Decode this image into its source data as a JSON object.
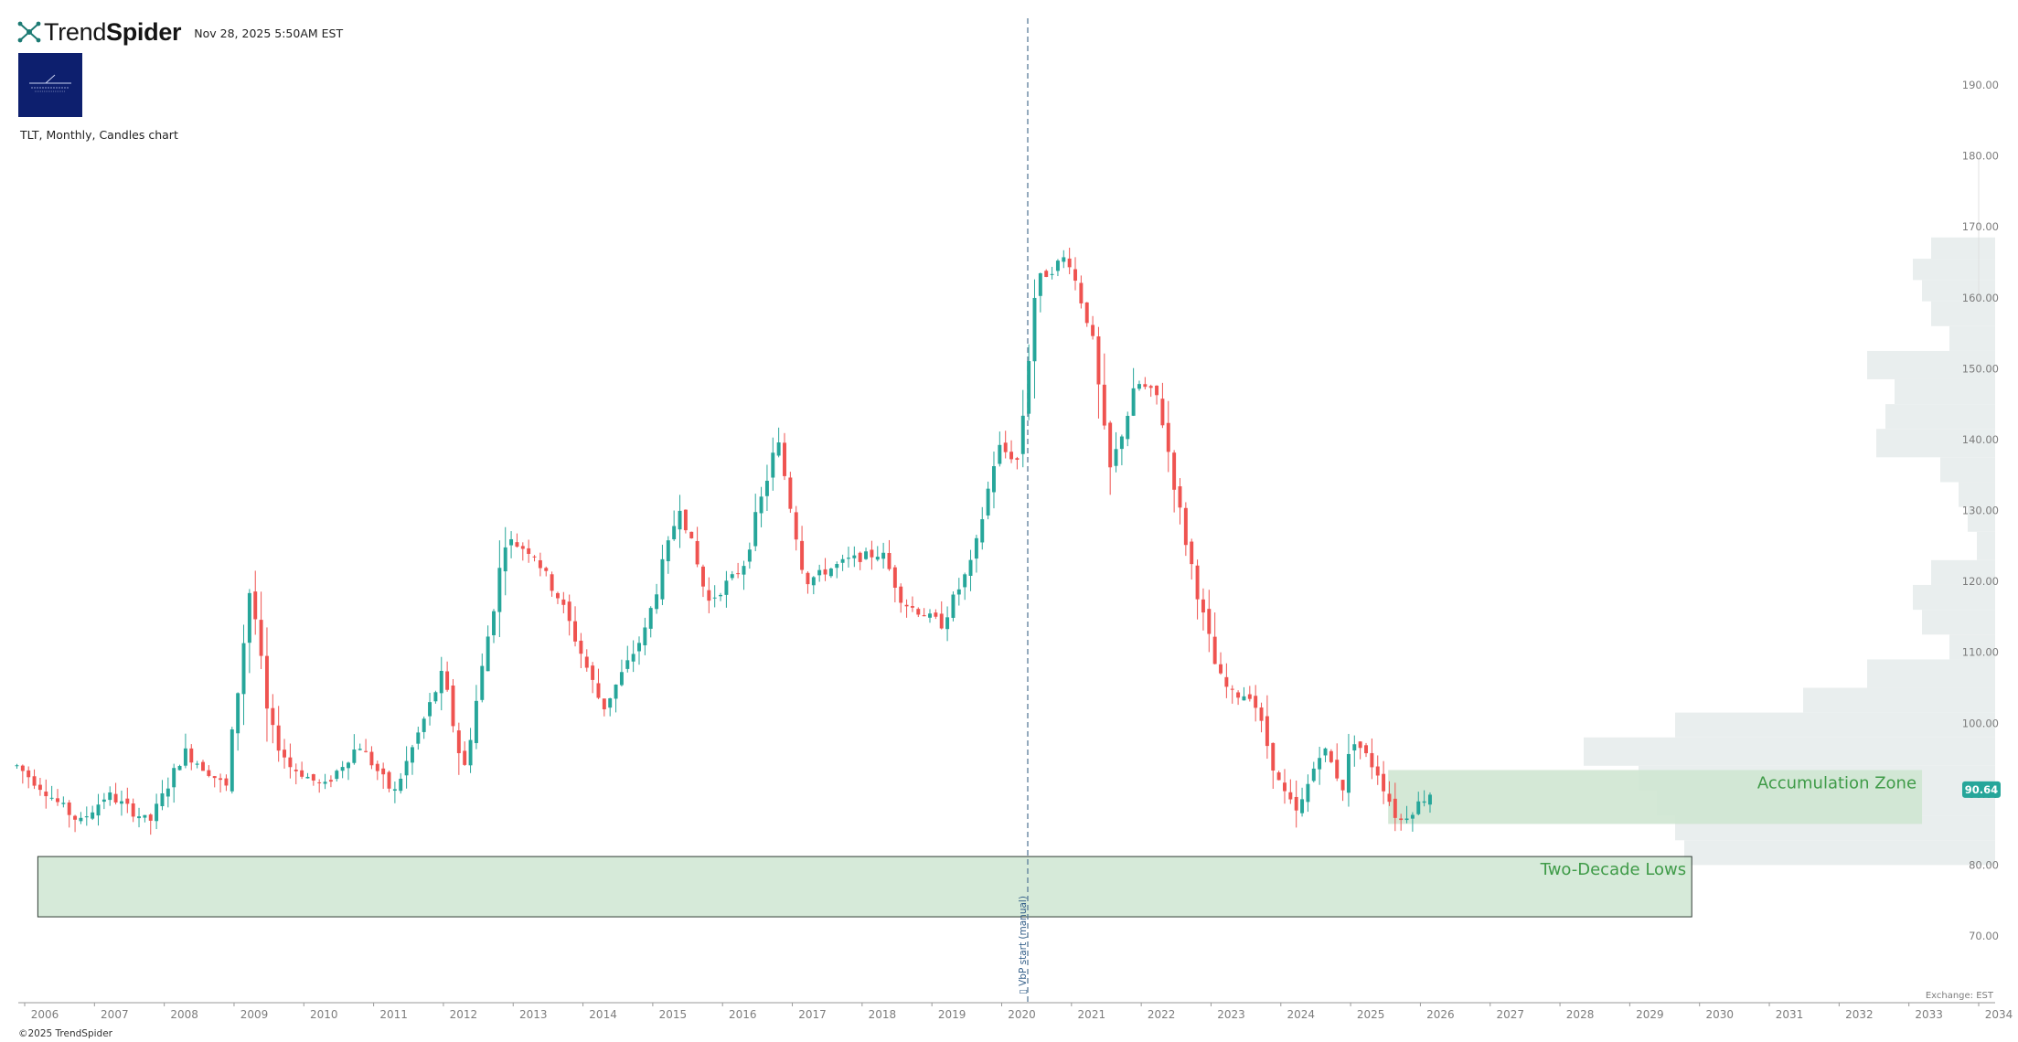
{
  "header": {
    "brand_light": "Trend",
    "brand_bold": "Spider",
    "date": "Nov 28, 2025 5:50AM EST",
    "caption": "TLT, Monthly, Candles chart",
    "copyright": "©2025 TrendSpider",
    "exchange": "Exchange: EST"
  },
  "colors": {
    "up": "#26a69a",
    "down": "#ef5350",
    "zone_fill": "#cfe6d2",
    "zone_label": "#3f9b48",
    "volume_profile": "#e9eeee",
    "marker_line": "#5a7d9a",
    "price_badge": "#26a69a"
  },
  "chart_data": {
    "type": "candlestick",
    "symbol": "TLT",
    "interval": "Monthly",
    "ylim": [
      63,
      202
    ],
    "y_ticks": [
      "70.00",
      "80.00",
      "90.00",
      "100.00",
      "110.00",
      "120.00",
      "130.00",
      "140.00",
      "150.00",
      "160.00",
      "170.00",
      "180.00",
      "190.00"
    ],
    "x_ticks": [
      "2006",
      "2007",
      "2008",
      "2009",
      "2010",
      "2011",
      "2012",
      "2013",
      "2014",
      "2015",
      "2016",
      "2017",
      "2018",
      "2019",
      "2020",
      "2021",
      "2022",
      "2023",
      "2024",
      "2025",
      "2026",
      "2027",
      "2028",
      "2029",
      "2030",
      "2031",
      "2032",
      "2033",
      "2034"
    ],
    "last_price": "90.64",
    "vertical_marker": {
      "date": "2020.12",
      "label": "VbP start (manual)"
    },
    "zones": [
      {
        "label": "Two-Decade Lows",
        "x_start": 2005.9,
        "x_end": 2029.6,
        "y_low": 72.7,
        "y_high": 81.2
      },
      {
        "label": "Accumulation Zone",
        "x_start": 2025.25,
        "x_end": 2032.9,
        "y_low": 85.8,
        "y_high": 93.4
      }
    ],
    "volume_profile": [
      {
        "low": 165.5,
        "high": 168.5,
        "rel": 0.07
      },
      {
        "low": 162.5,
        "high": 165.5,
        "rel": 0.09
      },
      {
        "low": 159.5,
        "high": 162.5,
        "rel": 0.08
      },
      {
        "low": 156.0,
        "high": 159.5,
        "rel": 0.07
      },
      {
        "low": 152.5,
        "high": 156.0,
        "rel": 0.05
      },
      {
        "low": 148.5,
        "high": 152.5,
        "rel": 0.14
      },
      {
        "low": 145.0,
        "high": 148.5,
        "rel": 0.11
      },
      {
        "low": 141.5,
        "high": 145.0,
        "rel": 0.12
      },
      {
        "low": 137.5,
        "high": 141.5,
        "rel": 0.13
      },
      {
        "low": 134.0,
        "high": 137.5,
        "rel": 0.06
      },
      {
        "low": 130.5,
        "high": 134.0,
        "rel": 0.04
      },
      {
        "low": 127.0,
        "high": 130.5,
        "rel": 0.03
      },
      {
        "low": 123.0,
        "high": 127.0,
        "rel": 0.02
      },
      {
        "low": 119.5,
        "high": 123.0,
        "rel": 0.07
      },
      {
        "low": 116.0,
        "high": 119.5,
        "rel": 0.09
      },
      {
        "low": 112.5,
        "high": 116.0,
        "rel": 0.08
      },
      {
        "low": 109.0,
        "high": 112.5,
        "rel": 0.05
      },
      {
        "low": 105.0,
        "high": 109.0,
        "rel": 0.14
      },
      {
        "low": 101.5,
        "high": 105.0,
        "rel": 0.21
      },
      {
        "low": 98.0,
        "high": 101.5,
        "rel": 0.35
      },
      {
        "low": 94.0,
        "high": 98.0,
        "rel": 0.45
      },
      {
        "low": 90.5,
        "high": 94.0,
        "rel": 0.39
      },
      {
        "low": 87.0,
        "high": 90.5,
        "rel": 0.37
      },
      {
        "low": 83.5,
        "high": 87.0,
        "rel": 0.35
      },
      {
        "low": 80.0,
        "high": 83.5,
        "rel": 0.34
      }
    ],
    "anchors": [
      [
        2005.6,
        94
      ],
      [
        2006.5,
        86
      ],
      [
        2006.9,
        90
      ],
      [
        2007.5,
        86
      ],
      [
        2008.0,
        96
      ],
      [
        2008.6,
        91
      ],
      [
        2008.95,
        120
      ],
      [
        2009.2,
        100
      ],
      [
        2009.5,
        94
      ],
      [
        2010.0,
        91
      ],
      [
        2010.5,
        97
      ],
      [
        2011.0,
        90
      ],
      [
        2011.7,
        107
      ],
      [
        2012.0,
        93
      ],
      [
        2012.6,
        126
      ],
      [
        2013.0,
        124
      ],
      [
        2013.4,
        117
      ],
      [
        2014.0,
        102
      ],
      [
        2014.6,
        113
      ],
      [
        2015.1,
        131
      ],
      [
        2015.5,
        117
      ],
      [
        2016.0,
        122
      ],
      [
        2016.5,
        140
      ],
      [
        2016.9,
        120
      ],
      [
        2017.5,
        123
      ],
      [
        2018.0,
        124
      ],
      [
        2018.3,
        117
      ],
      [
        2018.85,
        114
      ],
      [
        2019.3,
        123
      ],
      [
        2019.65,
        139
      ],
      [
        2019.95,
        137
      ],
      [
        2020.2,
        162
      ],
      [
        2020.65,
        166
      ],
      [
        2021.0,
        155
      ],
      [
        2021.25,
        135
      ],
      [
        2021.65,
        148
      ],
      [
        2021.95,
        146
      ],
      [
        2022.3,
        128
      ],
      [
        2022.6,
        115
      ],
      [
        2022.8,
        107
      ],
      [
        2023.0,
        104
      ],
      [
        2023.3,
        104
      ],
      [
        2023.7,
        91
      ],
      [
        2023.95,
        87
      ],
      [
        2024.3,
        97
      ],
      [
        2024.6,
        91
      ],
      [
        2024.75,
        98
      ],
      [
        2025.1,
        93
      ],
      [
        2025.4,
        86
      ],
      [
        2025.9,
        90.64
      ]
    ]
  }
}
